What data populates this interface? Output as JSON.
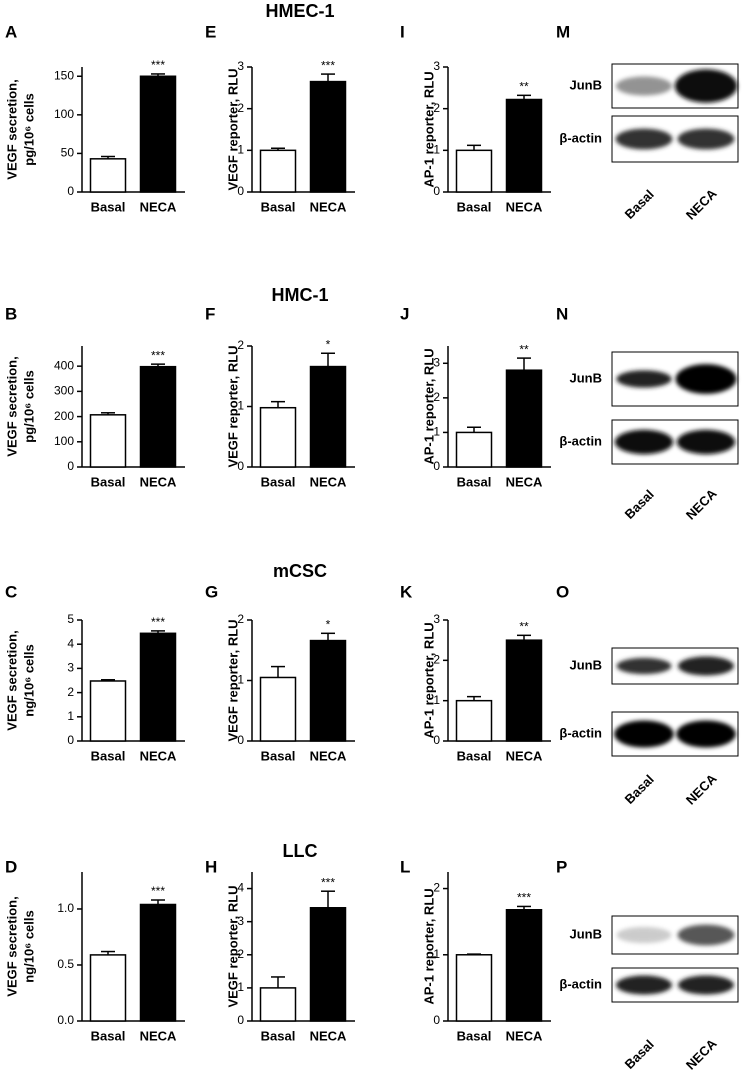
{
  "row_titles": [
    "HMEC-1",
    "HMC-1",
    "mCSC",
    "LLC"
  ],
  "chart_data": [
    {
      "type": "bar",
      "panel": "A",
      "ylabel": [
        "VEGF secretion,",
        "pg/10⁶ cells"
      ],
      "categories": [
        "Basal",
        "NECA"
      ],
      "values": [
        43,
        150
      ],
      "errors": [
        3,
        3
      ],
      "significance": "***",
      "ylim": [
        0,
        162
      ],
      "yticks": [
        0,
        50,
        100,
        150
      ]
    },
    {
      "type": "bar",
      "panel": "E",
      "ylabel": [
        "VEGF reporter, RLU"
      ],
      "categories": [
        "Basal",
        "NECA"
      ],
      "values": [
        1.0,
        2.65
      ],
      "errors": [
        0.05,
        0.18
      ],
      "significance": "***",
      "ylim": [
        0,
        3
      ],
      "yticks": [
        0,
        1,
        2,
        3
      ]
    },
    {
      "type": "bar",
      "panel": "I",
      "ylabel": [
        "AP-1 reporter, RLU"
      ],
      "categories": [
        "Basal",
        "NECA"
      ],
      "values": [
        1.0,
        2.22
      ],
      "errors": [
        0.12,
        0.1
      ],
      "significance": "**",
      "ylim": [
        0,
        3
      ],
      "yticks": [
        0,
        1,
        2,
        3
      ]
    },
    {
      "type": "bar",
      "panel": "B",
      "ylabel": [
        "VEGF secretion,",
        "pg/10⁶ cells"
      ],
      "categories": [
        "Basal",
        "NECA"
      ],
      "values": [
        207,
        398
      ],
      "errors": [
        8,
        10
      ],
      "significance": "***",
      "ylim": [
        0,
        480
      ],
      "yticks": [
        0,
        100,
        200,
        300,
        400
      ]
    },
    {
      "type": "bar",
      "panel": "F",
      "ylabel": [
        "VEGF reporter, RLU"
      ],
      "categories": [
        "Basal",
        "NECA"
      ],
      "values": [
        0.98,
        1.66
      ],
      "errors": [
        0.1,
        0.22
      ],
      "significance": "*",
      "ylim": [
        0,
        2
      ],
      "yticks": [
        0,
        1,
        2
      ]
    },
    {
      "type": "bar",
      "panel": "J",
      "ylabel": [
        "AP-1 reporter, RLU"
      ],
      "categories": [
        "Basal",
        "NECA"
      ],
      "values": [
        1.0,
        2.8
      ],
      "errors": [
        0.15,
        0.35
      ],
      "significance": "**",
      "ylim": [
        0,
        3.5
      ],
      "yticks": [
        0,
        1,
        2,
        3
      ]
    },
    {
      "type": "bar",
      "panel": "C",
      "ylabel": [
        "VEGF secretion,",
        "ng/10⁶ cells"
      ],
      "categories": [
        "Basal",
        "NECA"
      ],
      "values": [
        2.48,
        4.45
      ],
      "errors": [
        0.05,
        0.1
      ],
      "significance": "***",
      "ylim": [
        0,
        5
      ],
      "yticks": [
        0,
        1,
        2,
        3,
        4,
        5
      ]
    },
    {
      "type": "bar",
      "panel": "G",
      "ylabel": [
        "VEGF reporter, RLU"
      ],
      "categories": [
        "Basal",
        "NECA"
      ],
      "values": [
        1.05,
        1.66
      ],
      "errors": [
        0.18,
        0.12
      ],
      "significance": "*",
      "ylim": [
        0,
        2
      ],
      "yticks": [
        0,
        1,
        2
      ]
    },
    {
      "type": "bar",
      "panel": "K",
      "ylabel": [
        "AP-1 reporter, RLU"
      ],
      "categories": [
        "Basal",
        "NECA"
      ],
      "values": [
        1.0,
        2.5
      ],
      "errors": [
        0.1,
        0.12
      ],
      "significance": "**",
      "ylim": [
        0,
        3
      ],
      "yticks": [
        0,
        1,
        2,
        3
      ]
    },
    {
      "type": "bar",
      "panel": "D",
      "ylabel": [
        "VEGF secretion,",
        "ng/10⁶ cells"
      ],
      "categories": [
        "Basal",
        "NECA"
      ],
      "values": [
        0.59,
        1.04
      ],
      "errors": [
        0.03,
        0.04
      ],
      "significance": "***",
      "ylim": [
        0,
        1.33
      ],
      "yticks": [
        {
          "value": 0,
          "label": "0.0"
        },
        0.5,
        {
          "value": 1,
          "label": "1.0"
        }
      ]
    },
    {
      "type": "bar",
      "panel": "H",
      "ylabel": [
        "VEGF reporter, RLU"
      ],
      "categories": [
        "Basal",
        "NECA"
      ],
      "values": [
        1.0,
        3.42
      ],
      "errors": [
        0.33,
        0.5
      ],
      "significance": "***",
      "ylim": [
        0,
        4.5
      ],
      "yticks": [
        0,
        1,
        2,
        3,
        4
      ]
    },
    {
      "type": "bar",
      "panel": "L",
      "ylabel": [
        "AP-1 reporter, RLU"
      ],
      "categories": [
        "Basal",
        "NECA"
      ],
      "values": [
        1.0,
        1.68
      ],
      "errors": [
        0.01,
        0.05
      ],
      "significance": "***",
      "ylim": [
        0,
        2.25
      ],
      "yticks": [
        0,
        1,
        2
      ]
    }
  ],
  "blots": [
    {
      "panel": "M",
      "bands": [
        "JunB",
        "β-actin"
      ],
      "lanes": [
        "Basal",
        "NECA"
      ]
    },
    {
      "panel": "N",
      "bands": [
        "JunB",
        "β-actin"
      ],
      "lanes": [
        "Basal",
        "NECA"
      ]
    },
    {
      "panel": "O",
      "bands": [
        "JunB",
        "β-actin"
      ],
      "lanes": [
        "Basal",
        "NECA"
      ]
    },
    {
      "panel": "P",
      "bands": [
        "JunB",
        "β-actin"
      ],
      "lanes": [
        "Basal",
        "NECA"
      ]
    }
  ]
}
